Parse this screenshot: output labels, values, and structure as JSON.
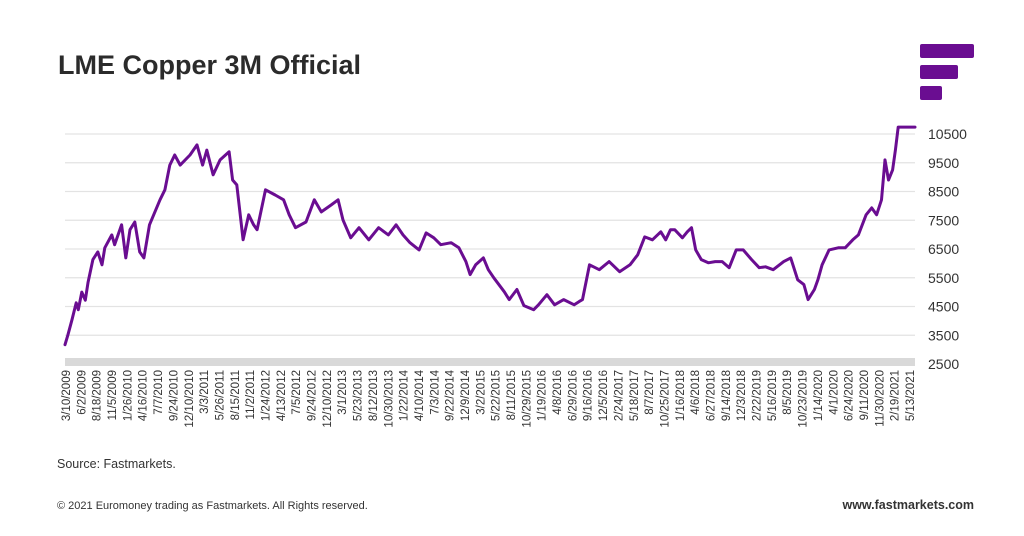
{
  "header": {
    "title": "LME Copper 3M Official",
    "logo_icon": "fastmarkets-logo-icon"
  },
  "colors": {
    "line": "#6a0d91",
    "grid": "#e3e3e3",
    "axis_band": "#d9d9d9",
    "brand": "#6a0d91"
  },
  "chart_data": {
    "type": "line",
    "title": "LME Copper 3M Official",
    "xlabel": "",
    "ylabel": "",
    "y_side": "right",
    "ylim": [
      2500,
      10500
    ],
    "yticks": [
      2500,
      3500,
      4500,
      5500,
      6500,
      7500,
      8500,
      9500,
      10500
    ],
    "grid": true,
    "legend": "none",
    "x_range_years": [
      2009.19,
      2021.36
    ],
    "x_tick_labels": [
      "3/10/2009",
      "6/2/2009",
      "8/18/2009",
      "11/5/2009",
      "1/26/2010",
      "4/16/2010",
      "7/7/2010",
      "9/24/2010",
      "12/10/2010",
      "3/3/2011",
      "5/26/2011",
      "8/15/2011",
      "11/2/2011",
      "1/24/2012",
      "4/13/2012",
      "7/5/2012",
      "9/24/2012",
      "12/10/2012",
      "3/1/2013",
      "5/23/2013",
      "8/12/2013",
      "10/30/2013",
      "1/22/2014",
      "4/10/2014",
      "7/3/2014",
      "9/22/2014",
      "12/9/2014",
      "3/2/2015",
      "5/22/2015",
      "8/11/2015",
      "10/29/2015",
      "1/19/2016",
      "4/8/2016",
      "6/29/2016",
      "9/16/2016",
      "12/5/2016",
      "2/24/2017",
      "5/18/2017",
      "8/7/2017",
      "10/25/2017",
      "1/16/2018",
      "4/6/2018",
      "6/27/2018",
      "9/14/2018",
      "12/3/2018",
      "2/22/2019",
      "5/16/2019",
      "8/5/2019",
      "10/23/2019",
      "1/14/2020",
      "4/1/2020",
      "6/24/2020",
      "9/11/2020",
      "11/30/2020",
      "2/19/2021",
      "5/13/2021"
    ],
    "series": [
      {
        "name": "LME Copper 3M Official",
        "x_year": [
          2009.19,
          2009.23,
          2009.29,
          2009.35,
          2009.38,
          2009.43,
          2009.48,
          2009.52,
          2009.59,
          2009.66,
          2009.72,
          2009.76,
          2009.86,
          2009.9,
          2010.0,
          2010.06,
          2010.12,
          2010.19,
          2010.26,
          2010.32,
          2010.4,
          2010.46,
          2010.55,
          2010.62,
          2010.69,
          2010.76,
          2010.84,
          2010.98,
          2011.08,
          2011.16,
          2011.22,
          2011.31,
          2011.41,
          2011.54,
          2011.59,
          2011.65,
          2011.74,
          2011.82,
          2011.89,
          2011.94,
          2012.06,
          2012.2,
          2012.32,
          2012.4,
          2012.49,
          2012.64,
          2012.76,
          2012.86,
          2013.0,
          2013.1,
          2013.17,
          2013.28,
          2013.4,
          2013.54,
          2013.68,
          2013.82,
          2013.93,
          2014.03,
          2014.13,
          2014.26,
          2014.36,
          2014.47,
          2014.57,
          2014.72,
          2014.83,
          2014.93,
          2014.99,
          2015.07,
          2015.18,
          2015.25,
          2015.33,
          2015.48,
          2015.55,
          2015.66,
          2015.76,
          2015.9,
          2015.97,
          2016.09,
          2016.2,
          2016.33,
          2016.48,
          2016.55,
          2016.6,
          2016.7,
          2016.84,
          2016.98,
          2017.13,
          2017.28,
          2017.39,
          2017.49,
          2017.6,
          2017.72,
          2017.79,
          2017.86,
          2017.92,
          2018.03,
          2018.1,
          2018.16,
          2018.22,
          2018.3,
          2018.4,
          2018.5,
          2018.6,
          2018.7,
          2018.8,
          2018.9,
          2019.02,
          2019.13,
          2019.22,
          2019.33,
          2019.48,
          2019.58,
          2019.68,
          2019.77,
          2019.83,
          2019.92,
          2019.97,
          2020.03,
          2020.13,
          2020.26,
          2020.36,
          2020.47,
          2020.55,
          2020.66,
          2020.74,
          2020.81,
          2020.88,
          2020.93,
          2020.98,
          2021.04,
          2021.08,
          2021.12,
          2021.16,
          2021.22,
          2021.28,
          2021.32,
          2021.36
        ],
        "values": [
          3170,
          3500,
          4040,
          4630,
          4390,
          5000,
          4720,
          5330,
          6130,
          6400,
          5950,
          6540,
          6990,
          6650,
          7340,
          6190,
          7170,
          7440,
          6400,
          6190,
          7340,
          7690,
          8210,
          8560,
          9420,
          9770,
          9420,
          9770,
          10120,
          9420,
          9940,
          9080,
          9600,
          9880,
          8900,
          8730,
          6820,
          7690,
          7340,
          7170,
          8560,
          8380,
          8210,
          7690,
          7240,
          7440,
          8210,
          7790,
          8030,
          8210,
          7510,
          6890,
          7240,
          6820,
          7240,
          6990,
          7340,
          6990,
          6720,
          6470,
          7060,
          6890,
          6650,
          6720,
          6540,
          6060,
          5610,
          5950,
          6190,
          5780,
          5500,
          5010,
          4740,
          5090,
          4530,
          4390,
          4560,
          4910,
          4560,
          4740,
          4560,
          4670,
          4740,
          5950,
          5780,
          6060,
          5710,
          5950,
          6300,
          6920,
          6820,
          7100,
          6820,
          7170,
          7170,
          6890,
          7100,
          7240,
          6470,
          6130,
          6020,
          6060,
          6060,
          5850,
          6470,
          6470,
          6130,
          5850,
          5880,
          5780,
          6060,
          6190,
          5430,
          5260,
          4740,
          5090,
          5430,
          5950,
          6470,
          6540,
          6540,
          6820,
          6990,
          7690,
          7930,
          7690,
          8210,
          9600,
          8900,
          9250,
          9940,
          10740,
          10740,
          10740,
          10740,
          10740,
          10740,
          10740,
          10740
        ]
      }
    ]
  },
  "footer": {
    "source": "Source: Fastmarkets.",
    "copyright": "© 2021 Euromoney trading as Fastmarkets. All Rights reserved.",
    "website": "www.fastmarkets.com"
  }
}
